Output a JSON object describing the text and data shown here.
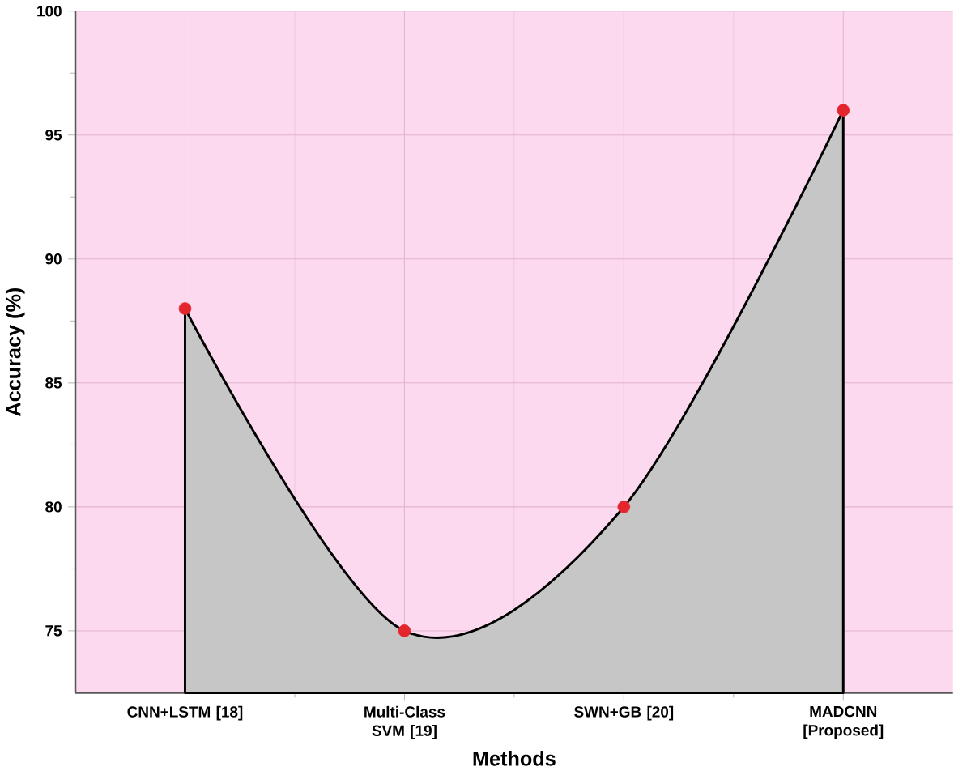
{
  "chart_data": {
    "type": "area",
    "xlabel": "Methods",
    "ylabel": "Accuracy (%)",
    "categories": [
      "CNN+LSTM [18]",
      "Multi-Class SVM [19]",
      "SWN+GB [20]",
      "MADCNN [Proposed]"
    ],
    "series": [
      {
        "color": "#e3262e",
        "values": [
          88,
          75,
          80,
          96
        ]
      }
    ],
    "ylim": [
      72.5,
      100
    ],
    "yticks": [
      75,
      80,
      85,
      90,
      95,
      100
    ],
    "grid": true,
    "marker": "circle",
    "line_style": "solid"
  }
}
